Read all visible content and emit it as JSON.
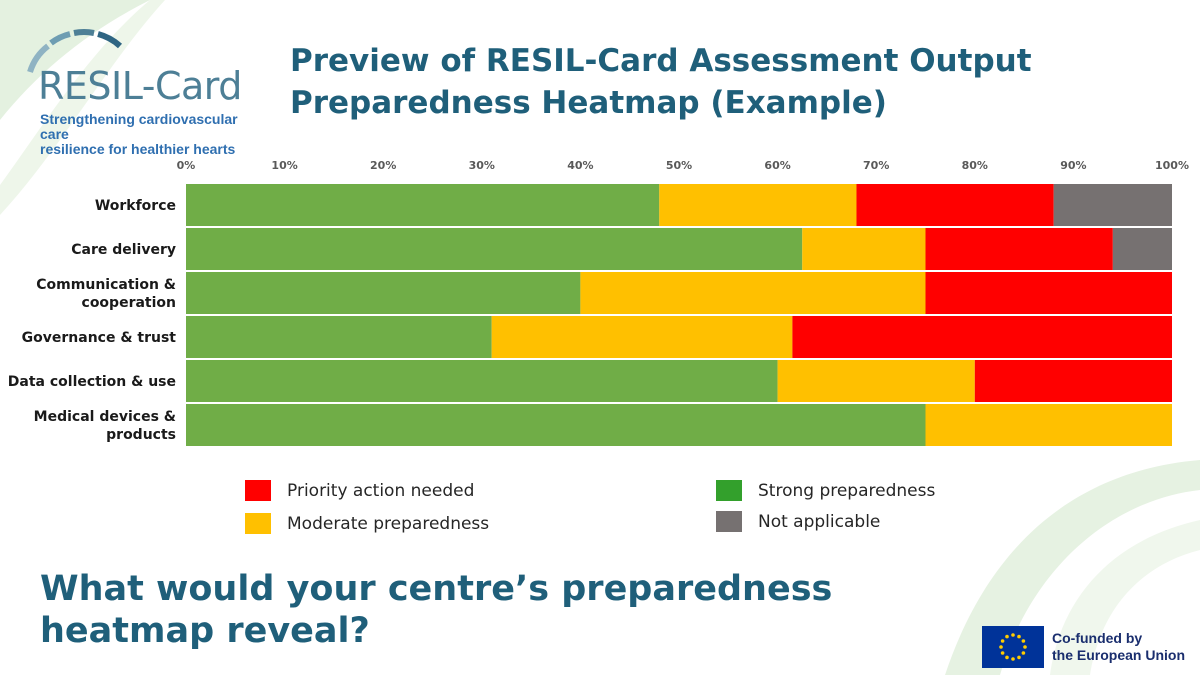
{
  "logo": {
    "wordmark": "RESIL-Card",
    "tagline_line1": "Strengthening cardiovascular care",
    "tagline_line2": "resilience for healthier hearts"
  },
  "title": {
    "line1": "Preview of RESIL-Card Assessment Output",
    "line2": "Preparedness Heatmap (Example)"
  },
  "colors": {
    "strong": "#70ad47",
    "moderate": "#ffc000",
    "priority": "#ff0000",
    "not_applicable": "#767171",
    "legend_strong": "#33a02c",
    "text_dark": "#1f5f7a"
  },
  "chart_data": {
    "type": "bar",
    "orientation": "horizontal",
    "stacked": true,
    "x_ticks": [
      "0%",
      "10%",
      "20%",
      "30%",
      "40%",
      "50%",
      "60%",
      "70%",
      "80%",
      "90%",
      "100%"
    ],
    "xlim": [
      0,
      100
    ],
    "categories": [
      [
        "Workforce"
      ],
      [
        "Care delivery"
      ],
      [
        "Communication &",
        "cooperation"
      ],
      [
        "Governance & trust"
      ],
      [
        "Data collection & use"
      ],
      [
        "Medical devices &",
        "products"
      ]
    ],
    "series": [
      {
        "name": "Strong preparedness",
        "color_key": "strong",
        "values": [
          48,
          62.5,
          40,
          31,
          60,
          75
        ]
      },
      {
        "name": "Moderate preparedness",
        "color_key": "moderate",
        "values": [
          20,
          12.5,
          35,
          30.5,
          20,
          25
        ]
      },
      {
        "name": "Priority action needed",
        "color_key": "priority",
        "values": [
          20,
          19,
          25,
          38.5,
          20,
          0
        ]
      },
      {
        "name": "Not applicable",
        "color_key": "not_applicable",
        "values": [
          12,
          6,
          0,
          0,
          0,
          0
        ]
      }
    ],
    "legend": [
      {
        "label": "Priority action needed",
        "color_key": "priority"
      },
      {
        "label": "Moderate preparedness",
        "color_key": "moderate"
      },
      {
        "label": "Strong preparedness",
        "color_key": "legend_strong"
      },
      {
        "label": "Not applicable",
        "color_key": "not_applicable"
      }
    ]
  },
  "question": {
    "line1": "What would your centre’s preparedness",
    "line2": "heatmap reveal?"
  },
  "eu": {
    "line1": "Co-funded by",
    "line2": "the European Union"
  }
}
